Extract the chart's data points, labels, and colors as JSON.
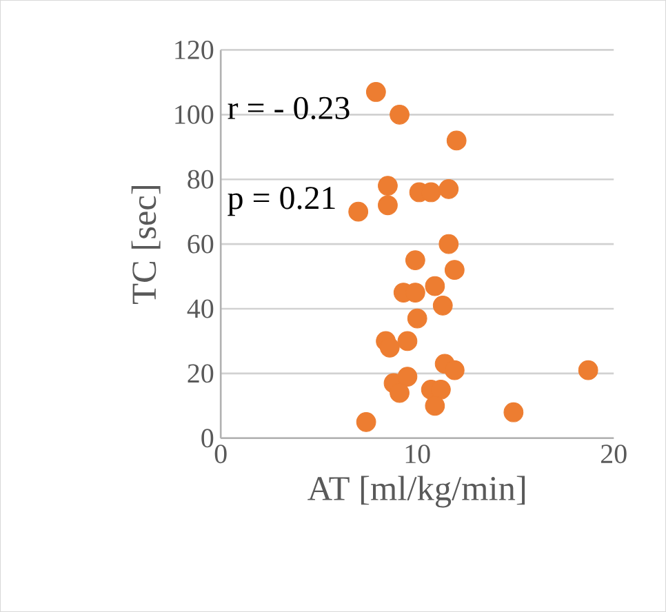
{
  "chart_data": {
    "type": "scatter",
    "xlabel": "AT [ml/kg/min]",
    "ylabel": "TC [sec]",
    "annotations": [
      "r = - 0.23",
      "p = 0.21"
    ],
    "series": [
      {
        "color": "#ed7d31",
        "x": [
          7.9,
          9.1,
          12.0,
          8.5,
          10.1,
          10.7,
          11.6,
          7.0,
          8.5,
          11.6,
          9.9,
          11.9,
          10.9,
          9.3,
          9.9,
          11.3,
          10.0,
          8.4,
          8.6,
          9.5,
          11.4,
          11.9,
          8.8,
          9.5,
          9.1,
          10.7,
          11.2,
          10.9,
          7.4,
          18.7,
          14.9
        ],
        "values": [
          107,
          100,
          92,
          78,
          76,
          76,
          77,
          70,
          72,
          60,
          55,
          52,
          47,
          45,
          45,
          41,
          37,
          30,
          28,
          30,
          23,
          21,
          17,
          19,
          14,
          15,
          15,
          10,
          5,
          21,
          8
        ]
      }
    ],
    "xlim": [
      0,
      20
    ],
    "ylim": [
      0,
      120
    ],
    "xticks": [
      0,
      10,
      20
    ],
    "yticks": [
      0,
      20,
      40,
      60,
      80,
      100,
      120
    ],
    "grid": "y",
    "marker": "circle"
  }
}
